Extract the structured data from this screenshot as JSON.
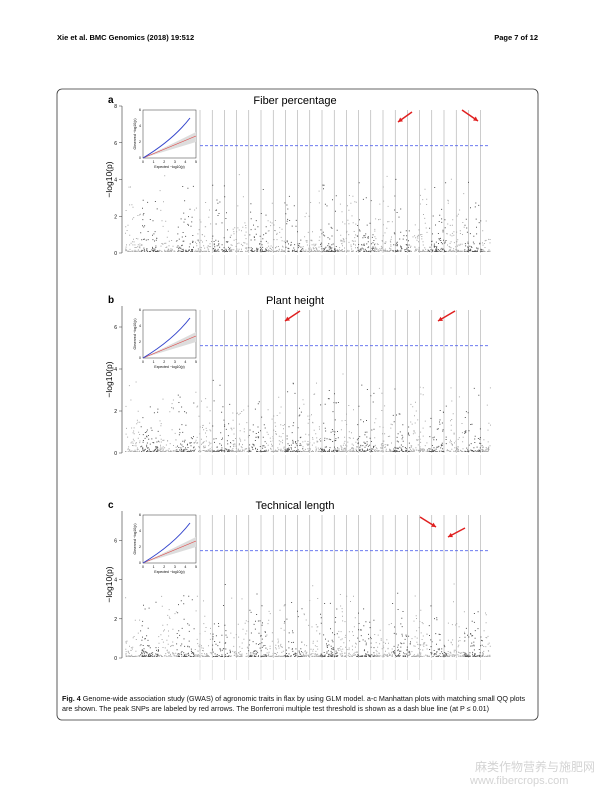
{
  "header": {
    "left": "Xie et al. BMC Genomics (2018) 19:512",
    "right": "Page 7 of 12"
  },
  "panels": [
    {
      "label": "a",
      "title": "Fiber percentage",
      "y_label": "−log10(p)",
      "yticks": [
        0,
        2,
        4,
        6,
        8
      ],
      "ylim": [
        0,
        8
      ]
    },
    {
      "label": "b",
      "title": "Plant height",
      "y_label": "−log10(p)",
      "yticks": [
        0,
        2,
        4,
        6
      ],
      "ylim": [
        0,
        7
      ]
    },
    {
      "label": "c",
      "title": "Technical length",
      "y_label": "−log10(p)",
      "yticks": [
        0,
        2,
        4,
        6
      ],
      "ylim": [
        0,
        7.5
      ]
    }
  ],
  "qq": {
    "x_label": "Expected −log10(p)",
    "y_label": "Observed −log10(p)",
    "xticks": [
      0,
      1,
      2,
      3,
      4,
      5
    ],
    "yticks": [
      0,
      2,
      4,
      6
    ]
  },
  "caption": {
    "label": "Fig. 4",
    "text": "Genome-wide association study (GWAS) of agronomic traits in flax by using GLM model. a-c Manhattan plots with matching small QQ plots are shown. The peak SNPs are labeled by red arrows. The Bonferroni multiple test threshold is shown as a dash blue line (at P ≤ 0.01)"
  },
  "watermark": {
    "line1": "麻类作物营养与施肥网",
    "line2": "www.fibercrops.com"
  }
}
